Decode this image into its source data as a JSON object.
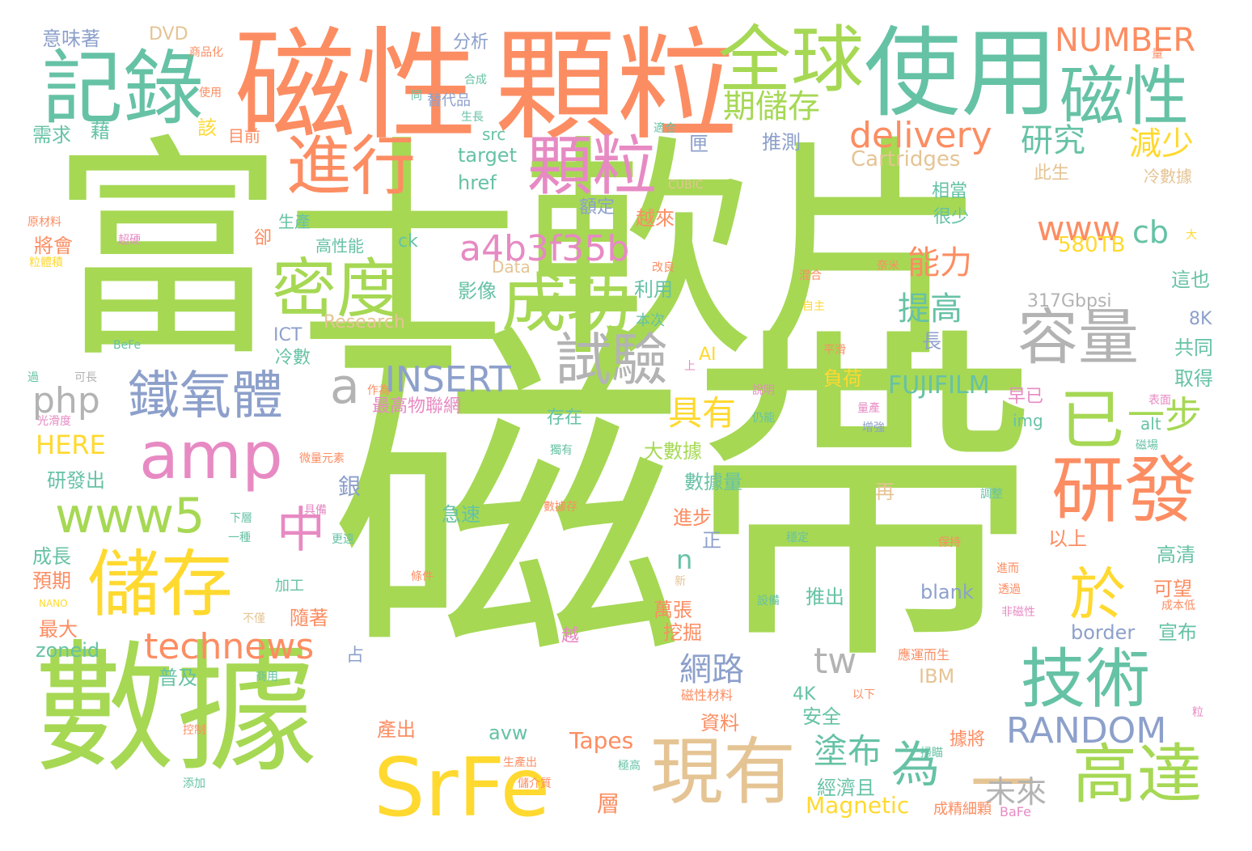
{
  "palette": {
    "green": "#a6d854",
    "orange": "#fc8d62",
    "teal": "#66c2a5",
    "pink": "#e78ac3",
    "yellow": "#ffd92f",
    "tan": "#e5c494",
    "gray": "#b3b3b3",
    "blue": "#8da0cb"
  },
  "words": [
    {
      "text": "磁帶",
      "color": "green"
    },
    {
      "text": "富士軟片",
      "color": "green"
    },
    {
      "text": "數據",
      "color": "green"
    },
    {
      "text": "磁性",
      "color": "orange"
    },
    {
      "text": "顆粒",
      "color": "orange"
    },
    {
      "text": "使用",
      "color": "teal"
    },
    {
      "text": "記錄",
      "color": "teal"
    },
    {
      "text": "全球",
      "color": "green"
    },
    {
      "text": "磁性",
      "color": "teal"
    },
    {
      "text": "進行",
      "color": "orange"
    },
    {
      "text": "顆粒",
      "color": "pink"
    },
    {
      "text": "密度",
      "color": "green"
    },
    {
      "text": "成功",
      "color": "green"
    },
    {
      "text": "amp",
      "color": "pink"
    },
    {
      "text": "鐵氧體",
      "color": "blue"
    },
    {
      "text": "儲存",
      "color": "yellow"
    },
    {
      "text": "SrFe",
      "color": "yellow"
    },
    {
      "text": "現有",
      "color": "tan"
    },
    {
      "text": "研發",
      "color": "orange"
    },
    {
      "text": "技術",
      "color": "teal"
    },
    {
      "text": "高達",
      "color": "green"
    },
    {
      "text": "已",
      "color": "green"
    },
    {
      "text": "容量",
      "color": "gray"
    },
    {
      "text": "試驗",
      "color": "gray"
    },
    {
      "text": "www5",
      "color": "green"
    },
    {
      "text": "a4b3f35b",
      "color": "pink"
    },
    {
      "text": "technews",
      "color": "orange"
    },
    {
      "text": "於",
      "color": "yellow"
    },
    {
      "text": "為",
      "color": "teal"
    },
    {
      "text": "一",
      "color": "tan"
    },
    {
      "text": "中",
      "color": "pink"
    },
    {
      "text": "INSERT",
      "color": "blue"
    },
    {
      "text": "RANDOM",
      "color": "blue"
    },
    {
      "text": "delivery",
      "color": "orange"
    },
    {
      "text": "期儲存",
      "color": "green"
    },
    {
      "text": "研究",
      "color": "teal"
    },
    {
      "text": "減少",
      "color": "yellow"
    },
    {
      "text": "www",
      "color": "orange"
    },
    {
      "text": "cb",
      "color": "teal"
    },
    {
      "text": "能力",
      "color": "orange"
    },
    {
      "text": "提高",
      "color": "teal"
    },
    {
      "text": "具有",
      "color": "yellow"
    },
    {
      "text": "塗布",
      "color": "teal"
    },
    {
      "text": "未來",
      "color": "gray"
    },
    {
      "text": "一步",
      "color": "green"
    },
    {
      "text": "網路",
      "color": "blue"
    },
    {
      "text": "tw",
      "color": "gray"
    },
    {
      "text": "php",
      "color": "gray"
    },
    {
      "text": "a",
      "color": "gray"
    },
    {
      "text": "HERE",
      "color": "yellow"
    },
    {
      "text": "NUMBER",
      "color": "orange"
    },
    {
      "text": "Cartridges",
      "color": "tan"
    },
    {
      "text": "317Gbpsi",
      "color": "gray"
    },
    {
      "text": "580TB",
      "color": "yellow"
    },
    {
      "text": "FUJIFILM",
      "color": "teal"
    },
    {
      "text": "Magnetic",
      "color": "yellow"
    },
    {
      "text": "Tapes",
      "color": "orange"
    },
    {
      "text": "Research",
      "color": "tan"
    },
    {
      "text": "Data",
      "color": "tan"
    },
    {
      "text": "target",
      "color": "teal"
    },
    {
      "text": "href",
      "color": "teal"
    },
    {
      "text": "src",
      "color": "teal"
    },
    {
      "text": "ck",
      "color": "teal"
    },
    {
      "text": "img",
      "color": "teal"
    },
    {
      "text": "alt",
      "color": "teal"
    },
    {
      "text": "blank",
      "color": "blue"
    },
    {
      "text": "border",
      "color": "blue"
    },
    {
      "text": "zoneid",
      "color": "teal"
    },
    {
      "text": "avw",
      "color": "teal"
    },
    {
      "text": "IBM",
      "color": "tan"
    },
    {
      "text": "ICT",
      "color": "blue"
    },
    {
      "text": "AI",
      "color": "yellow"
    },
    {
      "text": "8K",
      "color": "blue"
    },
    {
      "text": "4K",
      "color": "teal"
    },
    {
      "text": "n",
      "color": "teal"
    },
    {
      "text": "DVD",
      "color": "tan"
    },
    {
      "text": "NANO",
      "color": "yellow"
    },
    {
      "text": "CUBIC",
      "color": "tan"
    },
    {
      "text": "BeFe",
      "color": "teal"
    },
    {
      "text": "BaFe",
      "color": "pink"
    },
    {
      "text": "意味著",
      "color": "blue"
    },
    {
      "text": "分析",
      "color": "blue"
    },
    {
      "text": "需求",
      "color": "teal"
    },
    {
      "text": "藉",
      "color": "teal"
    },
    {
      "text": "該",
      "color": "yellow"
    },
    {
      "text": "目前",
      "color": "orange"
    },
    {
      "text": "替代品",
      "color": "blue"
    },
    {
      "text": "推測",
      "color": "blue"
    },
    {
      "text": "匣",
      "color": "blue"
    },
    {
      "text": "額定",
      "color": "blue"
    },
    {
      "text": "越來",
      "color": "orange"
    },
    {
      "text": "相當",
      "color": "teal"
    },
    {
      "text": "很少",
      "color": "teal"
    },
    {
      "text": "此生",
      "color": "tan"
    },
    {
      "text": "冷數據",
      "color": "tan"
    },
    {
      "text": "生產",
      "color": "teal"
    },
    {
      "text": "將會",
      "color": "orange"
    },
    {
      "text": "卻",
      "color": "orange"
    },
    {
      "text": "高性能",
      "color": "teal"
    },
    {
      "text": "利用",
      "color": "teal"
    },
    {
      "text": "影像",
      "color": "teal"
    },
    {
      "text": "本次",
      "color": "teal"
    },
    {
      "text": "長",
      "color": "blue"
    },
    {
      "text": "冷數",
      "color": "teal"
    },
    {
      "text": "負荷",
      "color": "yellow"
    },
    {
      "text": "最高物聯網",
      "color": "pink"
    },
    {
      "text": "存在",
      "color": "teal"
    },
    {
      "text": "早已",
      "color": "pink"
    },
    {
      "text": "取得",
      "color": "teal"
    },
    {
      "text": "共同",
      "color": "teal"
    },
    {
      "text": "這也",
      "color": "teal"
    },
    {
      "text": "研發出",
      "color": "teal"
    },
    {
      "text": "銀",
      "color": "blue"
    },
    {
      "text": "大數據",
      "color": "green"
    },
    {
      "text": "數據量",
      "color": "teal"
    },
    {
      "text": "急速",
      "color": "teal"
    },
    {
      "text": "進步",
      "color": "orange"
    },
    {
      "text": "正",
      "color": "blue"
    },
    {
      "text": "再",
      "color": "tan"
    },
    {
      "text": "以上",
      "color": "orange"
    },
    {
      "text": "高清",
      "color": "teal"
    },
    {
      "text": "可望",
      "color": "orange"
    },
    {
      "text": "宣布",
      "color": "teal"
    },
    {
      "text": "成長",
      "color": "teal"
    },
    {
      "text": "預期",
      "color": "orange"
    },
    {
      "text": "最大",
      "color": "orange"
    },
    {
      "text": "加工",
      "color": "teal"
    },
    {
      "text": "隨著",
      "color": "orange"
    },
    {
      "text": "推出",
      "color": "teal"
    },
    {
      "text": "萬張",
      "color": "orange"
    },
    {
      "text": "挖掘",
      "color": "orange"
    },
    {
      "text": "越",
      "color": "pink"
    },
    {
      "text": "占",
      "color": "blue"
    },
    {
      "text": "普及",
      "color": "teal"
    },
    {
      "text": "安全",
      "color": "teal"
    },
    {
      "text": "產出",
      "color": "orange"
    },
    {
      "text": "資料",
      "color": "orange"
    },
    {
      "text": "據將",
      "color": "orange"
    },
    {
      "text": "層",
      "color": "orange"
    },
    {
      "text": "經濟且",
      "color": "teal"
    },
    {
      "text": "磁性材料",
      "color": "orange"
    },
    {
      "text": "成精細顆",
      "color": "orange"
    },
    {
      "text": "應運而生",
      "color": "orange"
    },
    {
      "text": "商品化",
      "color": "orange"
    },
    {
      "text": "使用",
      "color": "orange"
    },
    {
      "text": "合成",
      "color": "teal"
    },
    {
      "text": "同",
      "color": "teal"
    },
    {
      "text": "生長",
      "color": "teal"
    },
    {
      "text": "適合",
      "color": "teal"
    },
    {
      "text": "原材料",
      "color": "orange"
    },
    {
      "text": "超硬",
      "color": "pink"
    },
    {
      "text": "粒體積",
      "color": "yellow"
    },
    {
      "text": "改良",
      "color": "orange"
    },
    {
      "text": "奈米",
      "color": "orange"
    },
    {
      "text": "混合",
      "color": "orange"
    },
    {
      "text": "自主",
      "color": "yellow"
    },
    {
      "text": "過",
      "color": "teal"
    },
    {
      "text": "可長",
      "color": "gray"
    },
    {
      "text": "光滑度",
      "color": "pink"
    },
    {
      "text": "作為",
      "color": "orange"
    },
    {
      "text": "上",
      "color": "pink"
    },
    {
      "text": "平滑",
      "color": "orange"
    },
    {
      "text": "說明",
      "color": "pink"
    },
    {
      "text": "量產",
      "color": "pink"
    },
    {
      "text": "表面",
      "color": "pink"
    },
    {
      "text": "仍能",
      "color": "teal"
    },
    {
      "text": "增強",
      "color": "blue"
    },
    {
      "text": "磁場",
      "color": "teal"
    },
    {
      "text": "微量元素",
      "color": "orange"
    },
    {
      "text": "獨有",
      "color": "teal"
    },
    {
      "text": "下層",
      "color": "teal"
    },
    {
      "text": "一種",
      "color": "teal"
    },
    {
      "text": "更遠",
      "color": "teal"
    },
    {
      "text": "具備",
      "color": "pink"
    },
    {
      "text": "數據存",
      "color": "orange"
    },
    {
      "text": "穩定",
      "color": "teal"
    },
    {
      "text": "保持",
      "color": "orange"
    },
    {
      "text": "進而",
      "color": "orange"
    },
    {
      "text": "透過",
      "color": "orange"
    },
    {
      "text": "條件",
      "color": "orange"
    },
    {
      "text": "新",
      "color": "tan"
    },
    {
      "text": "設備",
      "color": "teal"
    },
    {
      "text": "成本低",
      "color": "orange"
    },
    {
      "text": "非磁性",
      "color": "pink"
    },
    {
      "text": "不僅",
      "color": "tan"
    },
    {
      "text": "商用",
      "color": "teal"
    },
    {
      "text": "以下",
      "color": "orange"
    },
    {
      "text": "粒",
      "color": "pink"
    },
    {
      "text": "控制",
      "color": "orange"
    },
    {
      "text": "掃瞄",
      "color": "teal"
    },
    {
      "text": "生產出",
      "color": "orange"
    },
    {
      "text": "添加",
      "color": "teal"
    },
    {
      "text": "極高",
      "color": "teal"
    },
    {
      "text": "儲介質",
      "color": "orange"
    },
    {
      "text": "調整",
      "color": "teal"
    },
    {
      "text": "大",
      "color": "yellow"
    },
    {
      "text": "量",
      "color": "orange"
    },
    {
      "text": "頂部",
      "color": "orange"
    }
  ]
}
